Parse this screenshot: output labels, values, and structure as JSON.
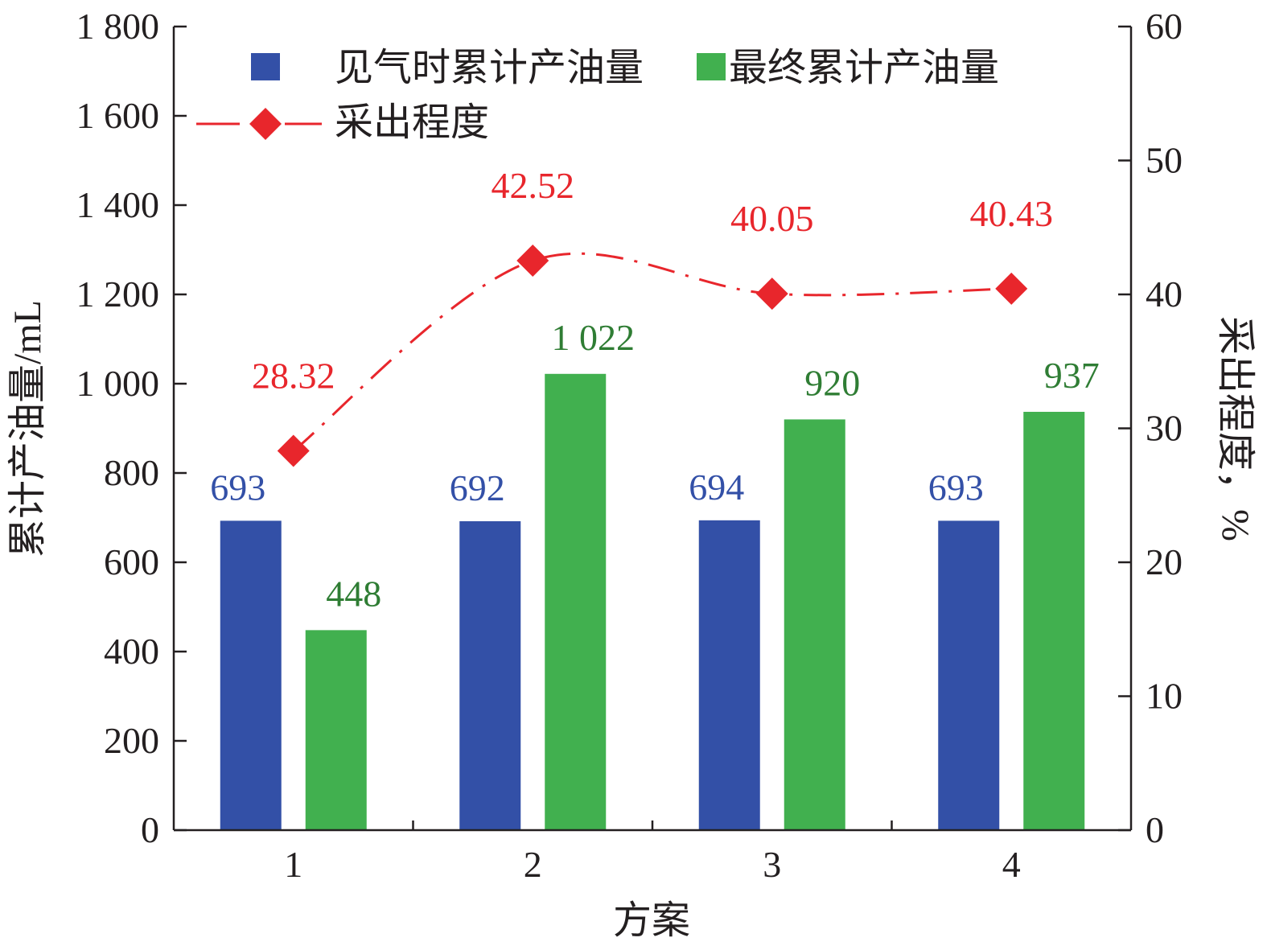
{
  "chart_data": {
    "type": "bar",
    "categories": [
      "1",
      "2",
      "3",
      "4"
    ],
    "xlabel": "方案",
    "ylabel": "累计产油量/mL",
    "y2label": "采出程度，%",
    "ylim": [
      0,
      1800
    ],
    "yticks": [
      "0",
      "200",
      "400",
      "600",
      "800",
      "1 000",
      "1 200",
      "1 400",
      "1 600",
      "1 800"
    ],
    "y2lim": [
      0,
      60
    ],
    "y2ticks": [
      "0",
      "10",
      "20",
      "30",
      "40",
      "50",
      "60"
    ],
    "grid": false,
    "legend_position": "top-left",
    "series": [
      {
        "name": "见气时累计产油量",
        "type": "bar",
        "axis": "left",
        "color": "#3350a7",
        "values": [
          693,
          692,
          694,
          693
        ],
        "labels": [
          "693",
          "692",
          "694",
          "693"
        ]
      },
      {
        "name": "最终累计产油量",
        "type": "bar",
        "axis": "left",
        "color": "#41b04f",
        "label_color": "#2f7d34",
        "values": [
          448,
          1022,
          920,
          937
        ],
        "labels": [
          "448",
          "1 022",
          "920",
          "937"
        ]
      },
      {
        "name": "采出程度",
        "type": "line",
        "axis": "right",
        "color": "#e8262c",
        "marker": "diamond",
        "line_style": "dash-dot",
        "values": [
          28.32,
          42.52,
          40.05,
          40.43
        ],
        "labels": [
          "28.32",
          "42.52",
          "40.05",
          "40.43"
        ]
      }
    ]
  }
}
